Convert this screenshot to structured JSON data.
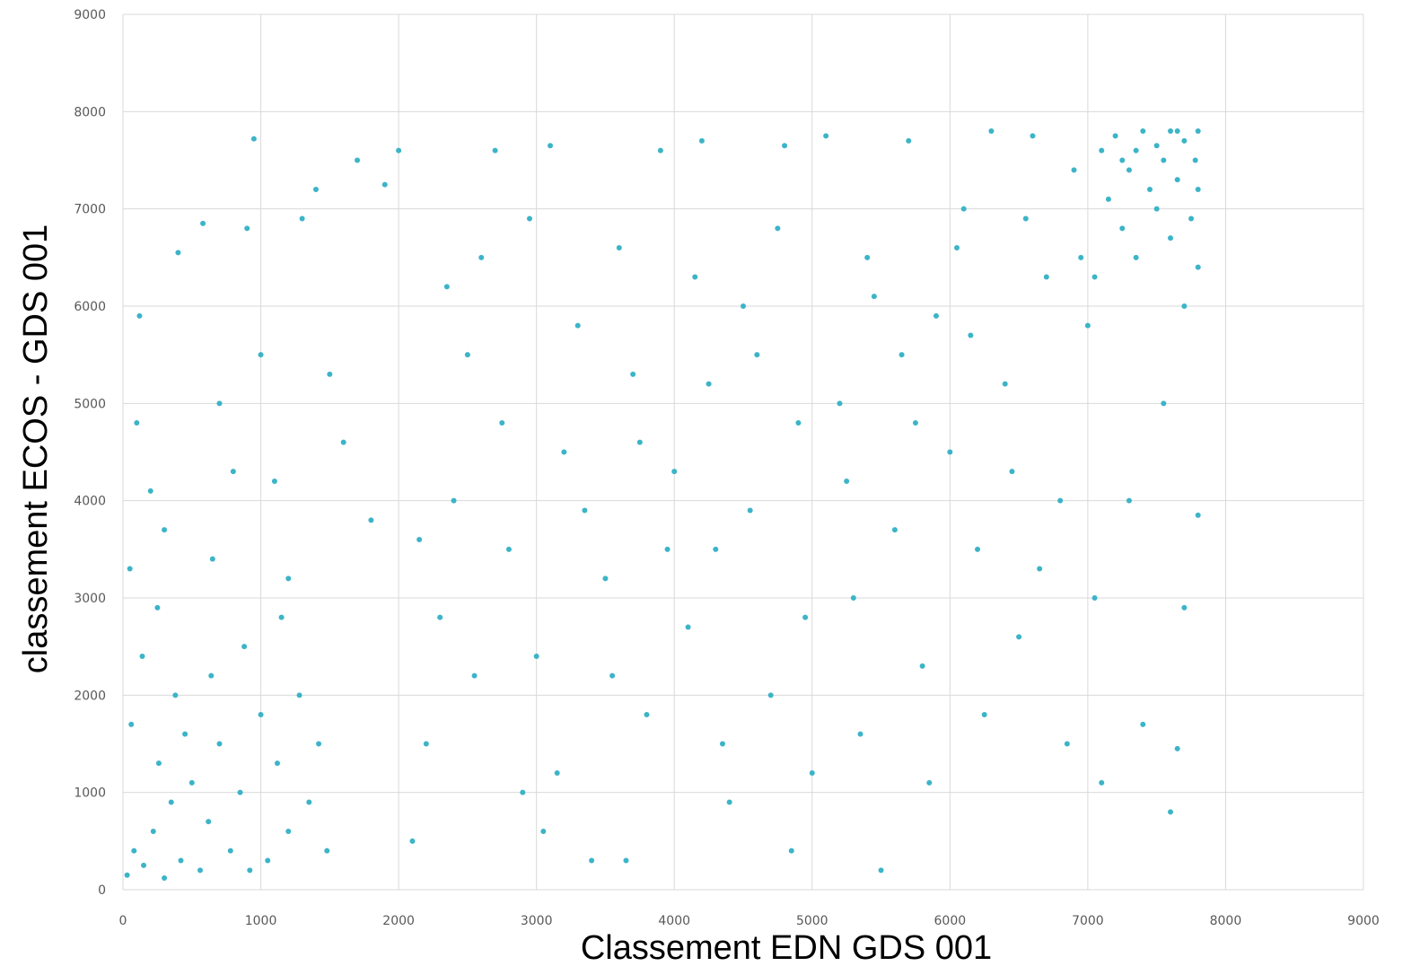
{
  "chart_data": {
    "type": "scatter",
    "x_label": "Classement EDN GDS 001",
    "y_label": "classement ECOS -  GDS 001",
    "xlim": [
      0,
      9000
    ],
    "ylim": [
      0,
      9000
    ],
    "xticks": [
      0,
      1000,
      2000,
      3000,
      4000,
      5000,
      6000,
      7000,
      8000,
      9000
    ],
    "yticks": [
      0,
      1000,
      2000,
      3000,
      4000,
      5000,
      6000,
      7000,
      8000,
      9000
    ],
    "grid": true,
    "series": [
      {
        "color": "#3cb4c8",
        "x": [
          30,
          80,
          150,
          220,
          300,
          350,
          420,
          500,
          560,
          620,
          700,
          780,
          850,
          920,
          1000,
          1050,
          1120,
          1200,
          1280,
          1350,
          1420,
          60,
          140,
          260,
          380,
          450,
          640,
          880,
          1150,
          1480,
          50,
          100,
          120,
          200,
          400,
          580,
          300,
          700,
          800,
          950,
          900,
          1000,
          1200,
          1300,
          1400,
          1600,
          1700,
          1800,
          1900,
          2000,
          1500,
          1100,
          650,
          250,
          2100,
          2200,
          2300,
          2400,
          2500,
          2600,
          2700,
          2800,
          2900,
          3000,
          3100,
          3200,
          3300,
          3400,
          3500,
          3600,
          3700,
          3800,
          3900,
          4000,
          4100,
          4200,
          4300,
          4400,
          4500,
          4600,
          4700,
          4800,
          4900,
          5000,
          2150,
          2350,
          2550,
          2750,
          2950,
          3150,
          3350,
          3550,
          3750,
          3950,
          4150,
          4350,
          4550,
          4750,
          4950,
          3050,
          3650,
          4250,
          4850,
          5100,
          5200,
          5300,
          5400,
          5500,
          5600,
          5700,
          5800,
          5900,
          6000,
          6100,
          6200,
          6300,
          6400,
          6500,
          6600,
          6700,
          6800,
          6900,
          7000,
          5250,
          5450,
          5650,
          5850,
          6050,
          6250,
          6450,
          6650,
          6850,
          7050,
          5350,
          5750,
          6150,
          6550,
          6950,
          7100,
          7200,
          7300,
          7400,
          7500,
          7600,
          7700,
          7780,
          7800,
          7150,
          7250,
          7350,
          7450,
          7550,
          7650,
          7750,
          7800,
          7050,
          7350,
          7600,
          7700,
          7800,
          7500,
          7250,
          7650,
          7100,
          7400,
          7600,
          7650,
          7800,
          7700,
          7300,
          7550
        ],
        "y": [
          150,
          400,
          250,
          600,
          120,
          900,
          300,
          1100,
          200,
          700,
          1500,
          400,
          1000,
          200,
          1800,
          300,
          1300,
          600,
          2000,
          900,
          1500,
          1700,
          2400,
          1300,
          2000,
          1600,
          2200,
          2500,
          2800,
          400,
          3300,
          4800,
          5900,
          4100,
          6550,
          6850,
          3700,
          5000,
          4300,
          7720,
          6800,
          5500,
          3200,
          6900,
          7200,
          4600,
          7500,
          3800,
          7250,
          7600,
          5300,
          4200,
          3400,
          2900,
          500,
          1500,
          2800,
          4000,
          5500,
          6500,
          7600,
          3500,
          1000,
          2400,
          7650,
          4500,
          5800,
          300,
          3200,
          6600,
          5300,
          1800,
          7600,
          4300,
          2700,
          7700,
          3500,
          900,
          6000,
          5500,
          2000,
          7650,
          4800,
          1200,
          3600,
          6200,
          2200,
          4800,
          6900,
          1200,
          3900,
          2200,
          4600,
          3500,
          6300,
          1500,
          3900,
          6800,
          2800,
          600,
          300,
          5200,
          400,
          7750,
          5000,
          3000,
          6500,
          200,
          3700,
          7700,
          2300,
          5900,
          4500,
          7000,
          3500,
          7800,
          5200,
          2600,
          7750,
          6300,
          4000,
          7400,
          5800,
          4200,
          6100,
          5500,
          1100,
          6600,
          1800,
          4300,
          3300,
          1500,
          3000,
          1600,
          4800,
          5700,
          6900,
          6500,
          7600,
          7750,
          7400,
          7800,
          7650,
          7800,
          7700,
          7500,
          7800,
          7100,
          6800,
          7600,
          7200,
          7500,
          7300,
          6900,
          7200,
          6300,
          6500,
          6700,
          6000,
          6400,
          7000,
          7500,
          7800,
          1100,
          1700,
          800,
          1450,
          3850,
          2900,
          4000,
          5000
        ]
      }
    ]
  }
}
